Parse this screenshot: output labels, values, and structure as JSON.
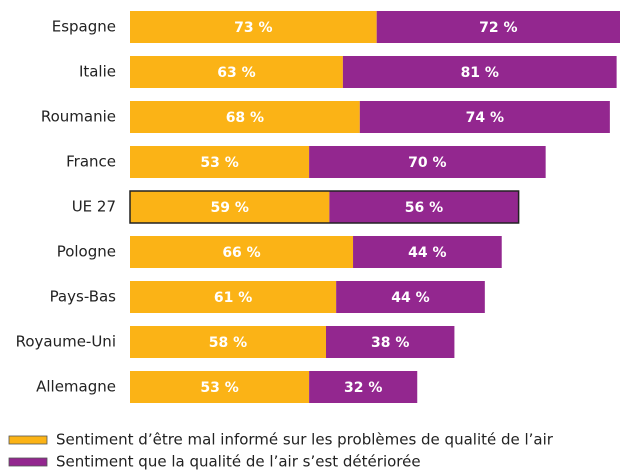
{
  "chart_data": {
    "type": "stacked-bar-horizontal",
    "categories": [
      "Espagne",
      "Italie",
      "Roumanie",
      "France",
      "UE 27",
      "Pologne",
      "Pays-Bas",
      "Royaume-Uni",
      "Allemagne"
    ],
    "highlight_category": "UE 27",
    "series": [
      {
        "name": "Sentiment d’être mal informé sur les problèmes de qualité de l’air",
        "color": "#fbb316",
        "values": [
          73,
          63,
          68,
          53,
          59,
          66,
          61,
          58,
          53
        ],
        "value_labels": [
          "73 %",
          "63 %",
          "68 %",
          "53 %",
          "59 %",
          "66 %",
          "61 %",
          "58 %",
          "53 %"
        ]
      },
      {
        "name": "Sentiment que la qualité de l’air s’est détériorée",
        "color": "#93278f",
        "values": [
          72,
          81,
          74,
          70,
          56,
          44,
          44,
          38,
          32
        ],
        "value_labels": [
          "72 %",
          "81 %",
          "74 %",
          "70 %",
          "56 %",
          "44 %",
          "44 %",
          "38 %",
          "32 %"
        ]
      }
    ]
  }
}
